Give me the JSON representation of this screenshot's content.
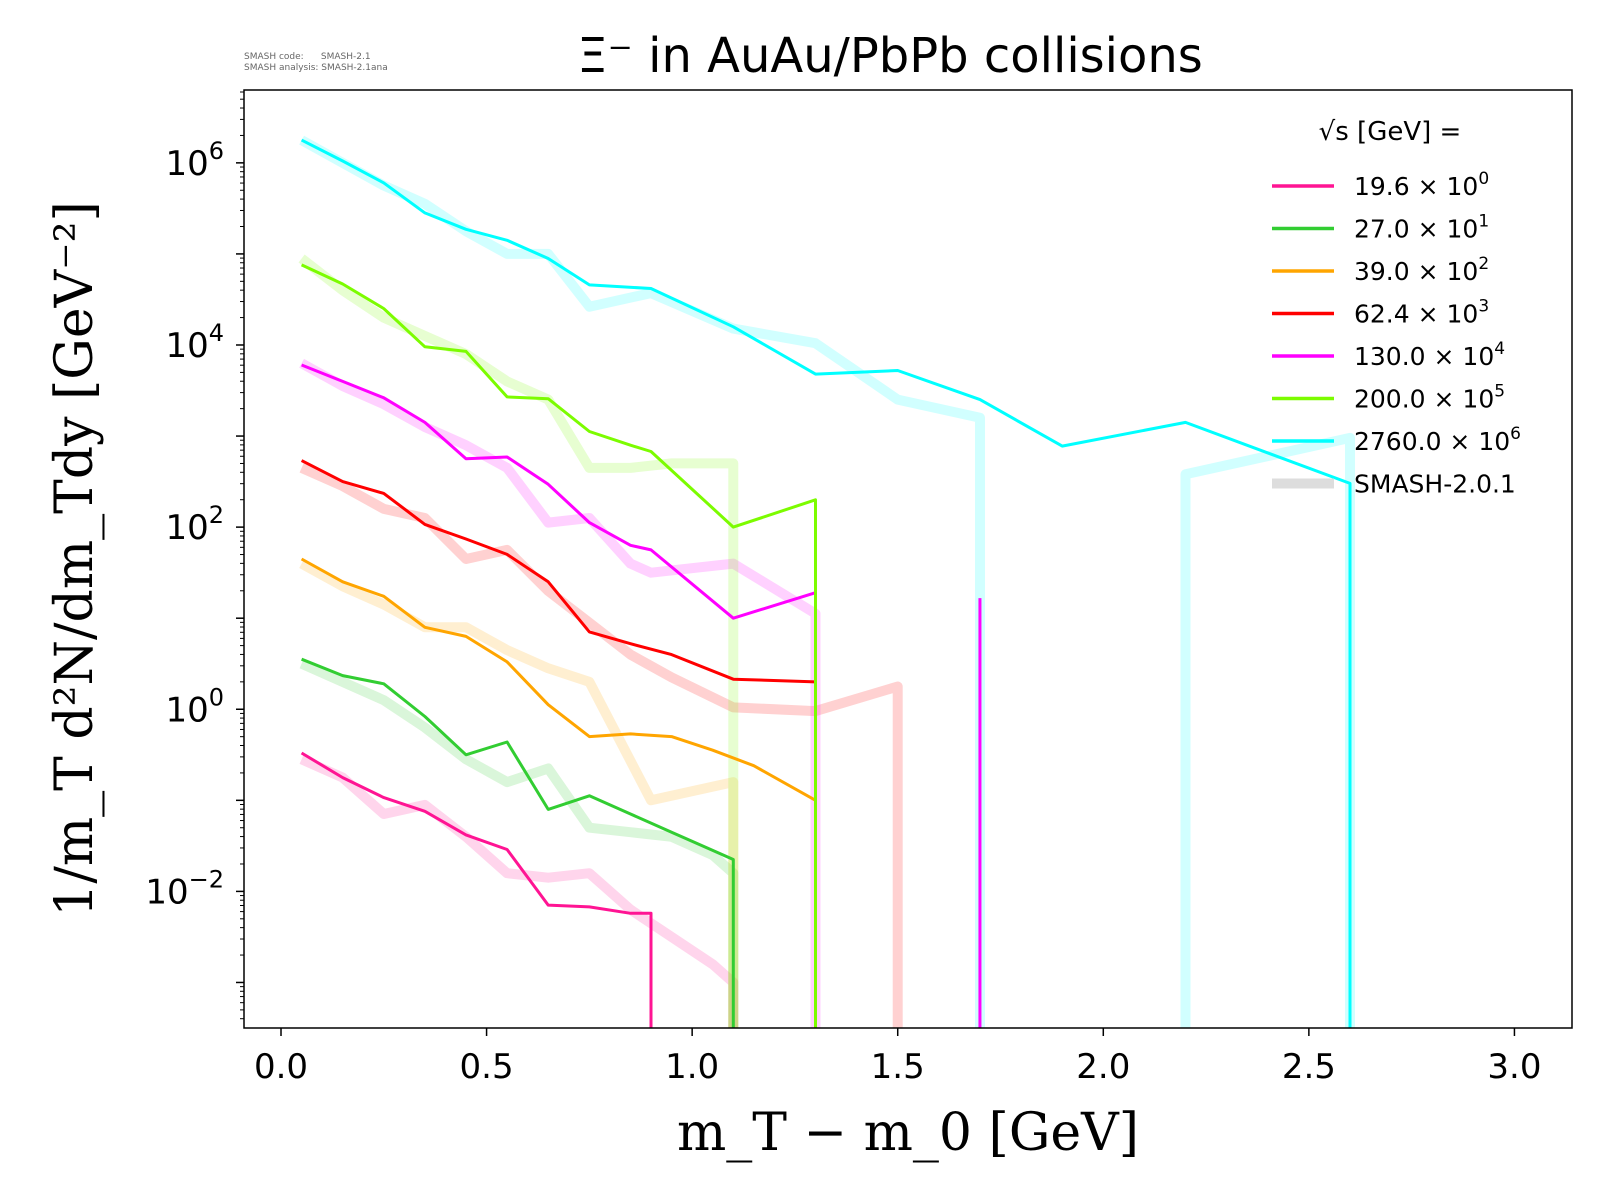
{
  "meta": {
    "code_line": "SMASH code:      SMASH-2.1",
    "analysis_line": "SMASH analysis: SMASH-2.1ana"
  },
  "chart_data": {
    "type": "line",
    "title": "Ξ⁻ in AuAu/PbPb collisions",
    "xlabel": "m_T − m_0 [GeV]",
    "ylabel": "1/m_T d²N/dm_Tdy [GeV⁻²]",
    "xlim": [
      -0.09,
      3.14
    ],
    "ylim_log10": [
      -3.5,
      6.8
    ],
    "x_ticks": [
      "0.0",
      "0.5",
      "1.0",
      "1.5",
      "2.0",
      "2.5",
      "3.0"
    ],
    "y_ticks": [
      {
        "base": "10",
        "exp": "6",
        "value": 6
      },
      {
        "base": "10",
        "exp": "4",
        "value": 4
      },
      {
        "base": "10",
        "exp": "2",
        "value": 2
      },
      {
        "base": "10",
        "exp": "0",
        "value": 0
      },
      {
        "base": "10",
        "exp": "−2",
        "value": -2
      }
    ],
    "legend": {
      "title": "√s  [GeV] =",
      "placement": "top-right",
      "reference_label": "SMASH-2.0.1",
      "reference_color": "#dddddd"
    },
    "series": [
      {
        "name": "19.6",
        "scale_exp": "0",
        "color": "#ff1493",
        "x": [
          0.05,
          0.15,
          0.25,
          0.35,
          0.45,
          0.55,
          0.65,
          0.75,
          0.85,
          0.9
        ],
        "log10_y": [
          -0.48,
          -0.75,
          -0.97,
          -1.12,
          -1.38,
          -1.54,
          -2.15,
          -2.17,
          -2.24,
          -2.24
        ],
        "drop_to_floor_at": 0.9,
        "reference": {
          "x": [
            0.05,
            0.15,
            0.25,
            0.35,
            0.45,
            0.55,
            0.65,
            0.75,
            0.85,
            0.95,
            1.05,
            1.1
          ],
          "log10_y": [
            -0.55,
            -0.75,
            -1.15,
            -1.05,
            -1.4,
            -1.8,
            -1.85,
            -1.8,
            -2.2,
            -2.5,
            -2.8,
            -3.0
          ],
          "drop_to_floor_at": 1.1
        }
      },
      {
        "name": "27.0",
        "scale_exp": "1",
        "color": "#32cd32",
        "x": [
          0.05,
          0.15,
          0.25,
          0.35,
          0.45,
          0.55,
          0.65,
          0.75,
          0.85,
          0.95,
          1.05,
          1.1
        ],
        "log10_y": [
          0.55,
          0.37,
          0.28,
          -0.08,
          -0.5,
          -0.36,
          -1.1,
          -0.95,
          -1.15,
          -1.35,
          -1.55,
          -1.65
        ],
        "drop_to_floor_at": 1.1,
        "reference": {
          "x": [
            0.05,
            0.15,
            0.25,
            0.35,
            0.45,
            0.55,
            0.65,
            0.75,
            0.85,
            0.95,
            1.05,
            1.1
          ],
          "log10_y": [
            0.5,
            0.3,
            0.1,
            -0.2,
            -0.55,
            -0.8,
            -0.65,
            -1.3,
            -1.35,
            -1.4,
            -1.6,
            -1.8
          ],
          "drop_to_floor_at": 1.1
        }
      },
      {
        "name": "39.0",
        "scale_exp": "2",
        "color": "#ffa500",
        "x": [
          0.05,
          0.15,
          0.25,
          0.35,
          0.45,
          0.55,
          0.65,
          0.75,
          0.85,
          0.95,
          1.05,
          1.15,
          1.3
        ],
        "log10_y": [
          1.65,
          1.4,
          1.24,
          0.9,
          0.8,
          0.52,
          0.05,
          -0.3,
          -0.27,
          -0.3,
          -0.45,
          -0.62,
          -1.0
        ],
        "drop_to_floor_at": 1.3,
        "reference": {
          "x": [
            0.05,
            0.15,
            0.25,
            0.35,
            0.45,
            0.55,
            0.65,
            0.75,
            0.9,
            1.1
          ],
          "log10_y": [
            1.6,
            1.35,
            1.15,
            0.9,
            0.9,
            0.65,
            0.45,
            0.3,
            -1.0,
            -0.8
          ],
          "drop_to_floor_at": 1.1
        }
      },
      {
        "name": "62.4",
        "scale_exp": "3",
        "color": "#ff0000",
        "x": [
          0.05,
          0.15,
          0.25,
          0.35,
          0.45,
          0.55,
          0.65,
          0.75,
          0.85,
          0.95,
          1.1,
          1.3
        ],
        "log10_y": [
          2.73,
          2.5,
          2.37,
          2.03,
          1.87,
          1.7,
          1.4,
          0.85,
          0.72,
          0.6,
          0.33,
          0.3
        ],
        "reference": {
          "x": [
            0.05,
            0.15,
            0.25,
            0.35,
            0.45,
            0.55,
            0.65,
            0.75,
            0.85,
            0.95,
            1.1,
            1.3,
            1.5
          ],
          "log10_y": [
            2.65,
            2.45,
            2.2,
            2.1,
            1.65,
            1.75,
            1.3,
            0.95,
            0.6,
            0.35,
            0.02,
            -0.02,
            0.25
          ],
          "drop_to_floor_at": 1.5
        }
      },
      {
        "name": "130.0",
        "scale_exp": "4",
        "color": "#ff00ff",
        "x": [
          0.05,
          0.15,
          0.25,
          0.35,
          0.45,
          0.55,
          0.65,
          0.75,
          0.85,
          0.9,
          1.1,
          1.3
        ],
        "log10_y": [
          3.78,
          3.6,
          3.42,
          3.15,
          2.75,
          2.77,
          2.47,
          2.05,
          1.8,
          1.75,
          1.0,
          1.28
        ],
        "reference": {
          "x": [
            0.05,
            0.15,
            0.25,
            0.35,
            0.45,
            0.55,
            0.65,
            0.75,
            0.85,
            0.9,
            1.1,
            1.3
          ],
          "log10_y": [
            3.8,
            3.55,
            3.35,
            3.1,
            2.9,
            2.65,
            2.05,
            2.1,
            1.6,
            1.5,
            1.6,
            1.05
          ],
          "drop_to_floor_at": 1.3
        },
        "extra_spike": {
          "x": 1.7,
          "log10_y": 1.22
        }
      },
      {
        "name": "200.0",
        "scale_exp": "5",
        "color": "#7cfc00",
        "x": [
          0.05,
          0.15,
          0.25,
          0.35,
          0.45,
          0.55,
          0.65,
          0.75,
          0.85,
          0.9,
          1.1,
          1.3
        ],
        "log10_y": [
          4.88,
          4.67,
          4.4,
          3.98,
          3.93,
          3.43,
          3.41,
          3.05,
          2.9,
          2.83,
          2.0,
          2.3
        ],
        "drop_to_floor_at": 1.3,
        "reference": {
          "x": [
            0.05,
            0.15,
            0.25,
            0.35,
            0.45,
            0.55,
            0.65,
            0.75,
            0.85,
            0.95,
            1.1
          ],
          "log10_y": [
            4.95,
            4.6,
            4.3,
            4.1,
            3.9,
            3.6,
            3.4,
            2.65,
            2.65,
            2.7,
            2.7
          ],
          "drop_to_floor_at": 1.1
        }
      },
      {
        "name": "2760.0",
        "scale_exp": "6",
        "color": "#00ffff",
        "x": [
          0.05,
          0.15,
          0.25,
          0.35,
          0.45,
          0.55,
          0.65,
          0.75,
          0.9,
          1.1,
          1.3,
          1.5,
          1.7,
          1.9,
          2.2,
          2.6
        ],
        "log10_y": [
          6.25,
          6.02,
          5.78,
          5.45,
          5.27,
          5.15,
          4.95,
          4.66,
          4.62,
          4.2,
          3.68,
          3.72,
          3.4,
          2.89,
          3.15,
          2.48
        ],
        "drop_to_floor_at": 2.6,
        "reference": {
          "x": [
            0.05,
            0.15,
            0.25,
            0.35,
            0.45,
            0.55,
            0.65,
            0.75,
            0.9,
            1.1,
            1.3,
            1.5,
            1.7
          ],
          "log10_y": [
            6.25,
            6.0,
            5.75,
            5.55,
            5.25,
            5.0,
            5.0,
            4.42,
            4.57,
            4.18,
            4.02,
            3.4,
            3.2
          ],
          "drop_to_floor_at": 1.7,
          "second_segment": {
            "x": [
              2.2,
              2.2,
              2.6,
              2.6
            ],
            "log10_y": [
              -3.5,
              2.58,
              2.98,
              -3.5
            ]
          }
        }
      }
    ]
  }
}
